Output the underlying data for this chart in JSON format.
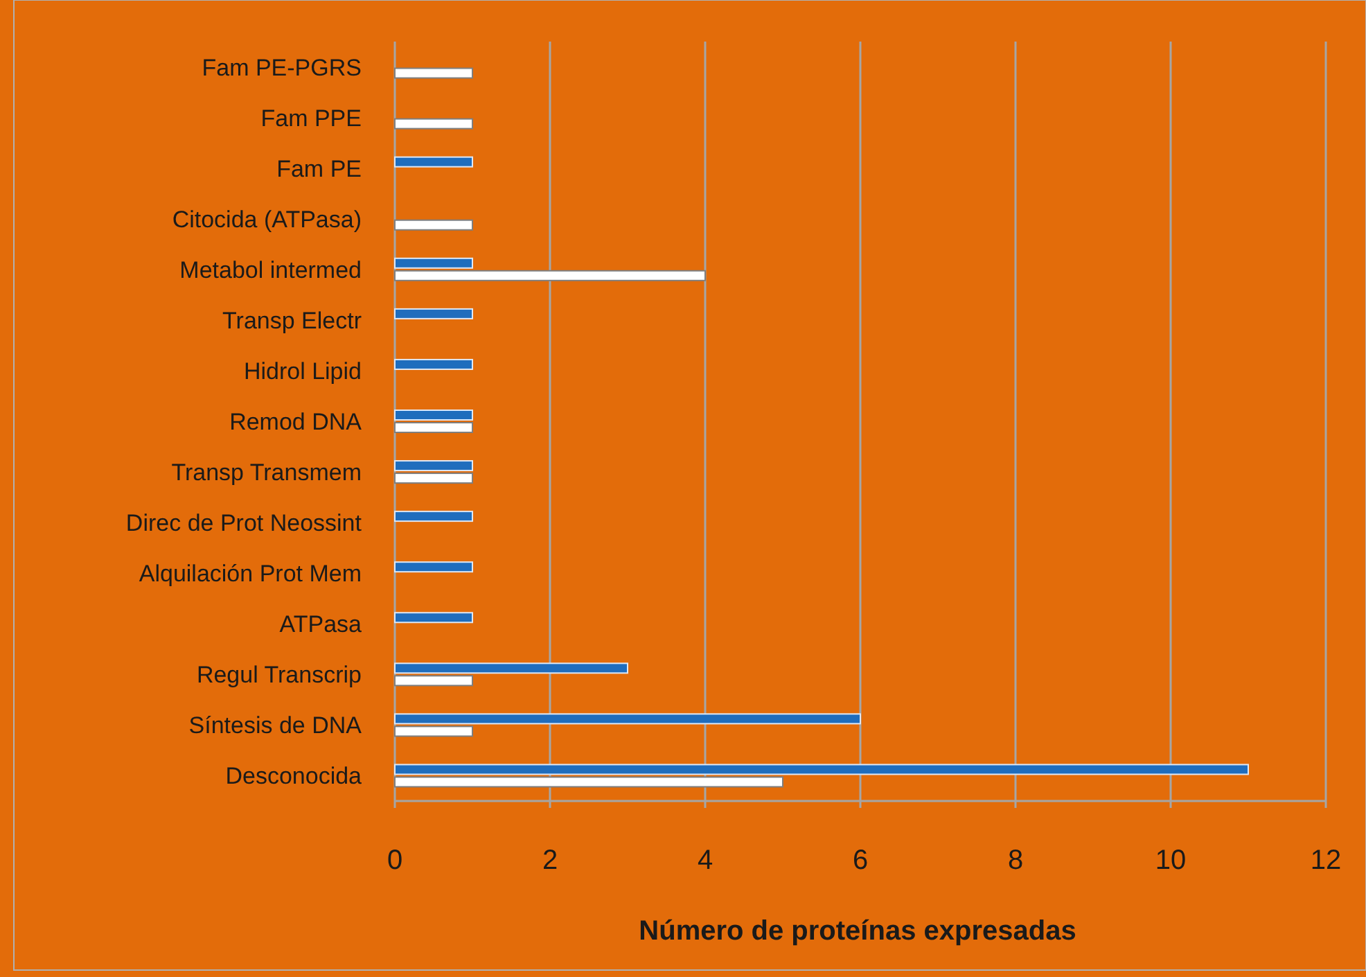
{
  "chart_data": {
    "type": "bar",
    "orientation": "horizontal",
    "xlabel": "Número de proteínas expresadas",
    "categories": [
      "Fam PE-PGRS",
      "Fam PPE",
      "Fam PE",
      "Citocida (ATPasa)",
      "Metabol intermed",
      "Transp Electr",
      "Hidrol Lipid",
      "Remod DNA",
      "Transp Transmem",
      "Direc de Prot Neossint",
      "Alquilación Prot Mem",
      "ATPasa",
      "Regul Transcrip",
      "Síntesis de DNA",
      "Desconocida"
    ],
    "series": [
      {
        "color": "#1f6dbd",
        "values": [
          null,
          null,
          1,
          null,
          1,
          1,
          1,
          1,
          1,
          1,
          1,
          1,
          3,
          6,
          11
        ]
      },
      {
        "color": "#ffffff",
        "values": [
          1,
          1,
          null,
          1,
          4,
          null,
          null,
          1,
          1,
          null,
          null,
          null,
          1,
          1,
          5
        ]
      }
    ],
    "xlim": [
      0,
      12
    ],
    "xticks": [
      0,
      2,
      4,
      6,
      8,
      10,
      12
    ],
    "grid": "x"
  }
}
